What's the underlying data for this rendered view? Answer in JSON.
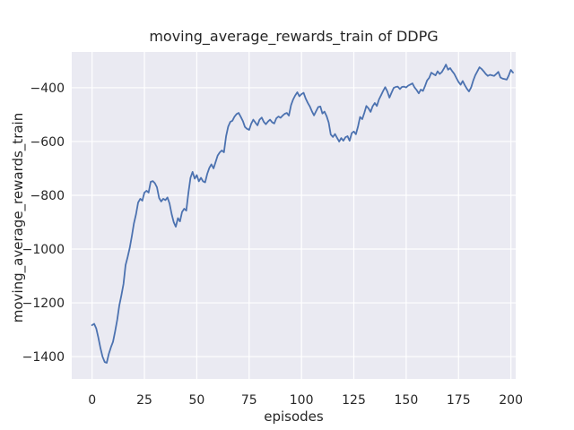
{
  "chart_data": {
    "type": "line",
    "title": "moving_average_rewards_train of DDPG",
    "xlabel": "episodes",
    "ylabel": "moving_average_rewards_train",
    "x_ticks": [
      0,
      25,
      50,
      75,
      100,
      125,
      150,
      175,
      200
    ],
    "y_ticks": [
      -400,
      -600,
      -800,
      -1000,
      -1200,
      -1400
    ],
    "xlim": [
      -9.7,
      202.3
    ],
    "ylim": [
      -1483,
      -267
    ],
    "grid": true,
    "legend_position": "none",
    "style": {
      "figure_background": "#ffffff",
      "axes_background": "#eaeaf2",
      "grid_color": "#ffffff",
      "line_color": "#4c72b0",
      "text_color": "#262626"
    },
    "series": [
      {
        "name": "moving_average_rewards_train",
        "x0": 0,
        "x_step": 1,
        "y": [
          -1283,
          -1278,
          -1295,
          -1330,
          -1368,
          -1400,
          -1420,
          -1423,
          -1390,
          -1365,
          -1345,
          -1307,
          -1263,
          -1210,
          -1173,
          -1130,
          -1060,
          -1030,
          -995,
          -952,
          -905,
          -870,
          -827,
          -813,
          -820,
          -790,
          -783,
          -790,
          -750,
          -747,
          -755,
          -770,
          -810,
          -823,
          -813,
          -818,
          -808,
          -830,
          -870,
          -900,
          -917,
          -885,
          -897,
          -862,
          -850,
          -857,
          -790,
          -735,
          -713,
          -738,
          -725,
          -748,
          -735,
          -748,
          -752,
          -720,
          -698,
          -685,
          -700,
          -676,
          -652,
          -640,
          -633,
          -640,
          -580,
          -545,
          -527,
          -523,
          -508,
          -498,
          -494,
          -508,
          -524,
          -546,
          -553,
          -557,
          -534,
          -519,
          -530,
          -540,
          -519,
          -511,
          -527,
          -536,
          -526,
          -519,
          -529,
          -533,
          -514,
          -507,
          -512,
          -504,
          -497,
          -494,
          -504,
          -465,
          -444,
          -429,
          -417,
          -432,
          -424,
          -419,
          -440,
          -456,
          -470,
          -488,
          -503,
          -487,
          -472,
          -470,
          -496,
          -489,
          -506,
          -530,
          -574,
          -583,
          -572,
          -586,
          -600,
          -587,
          -597,
          -584,
          -580,
          -597,
          -569,
          -563,
          -573,
          -544,
          -509,
          -517,
          -494,
          -468,
          -477,
          -490,
          -469,
          -457,
          -468,
          -444,
          -428,
          -412,
          -398,
          -414,
          -437,
          -419,
          -401,
          -397,
          -396,
          -405,
          -397,
          -396,
          -399,
          -392,
          -388,
          -384,
          -399,
          -409,
          -421,
          -407,
          -412,
          -394,
          -373,
          -363,
          -344,
          -349,
          -354,
          -339,
          -349,
          -342,
          -329,
          -314,
          -333,
          -327,
          -339,
          -349,
          -364,
          -379,
          -389,
          -375,
          -391,
          -404,
          -414,
          -399,
          -374,
          -354,
          -339,
          -324,
          -330,
          -339,
          -349,
          -356,
          -352,
          -354,
          -356,
          -349,
          -341,
          -362,
          -366,
          -368,
          -370,
          -354,
          -334,
          -344
        ]
      }
    ]
  }
}
